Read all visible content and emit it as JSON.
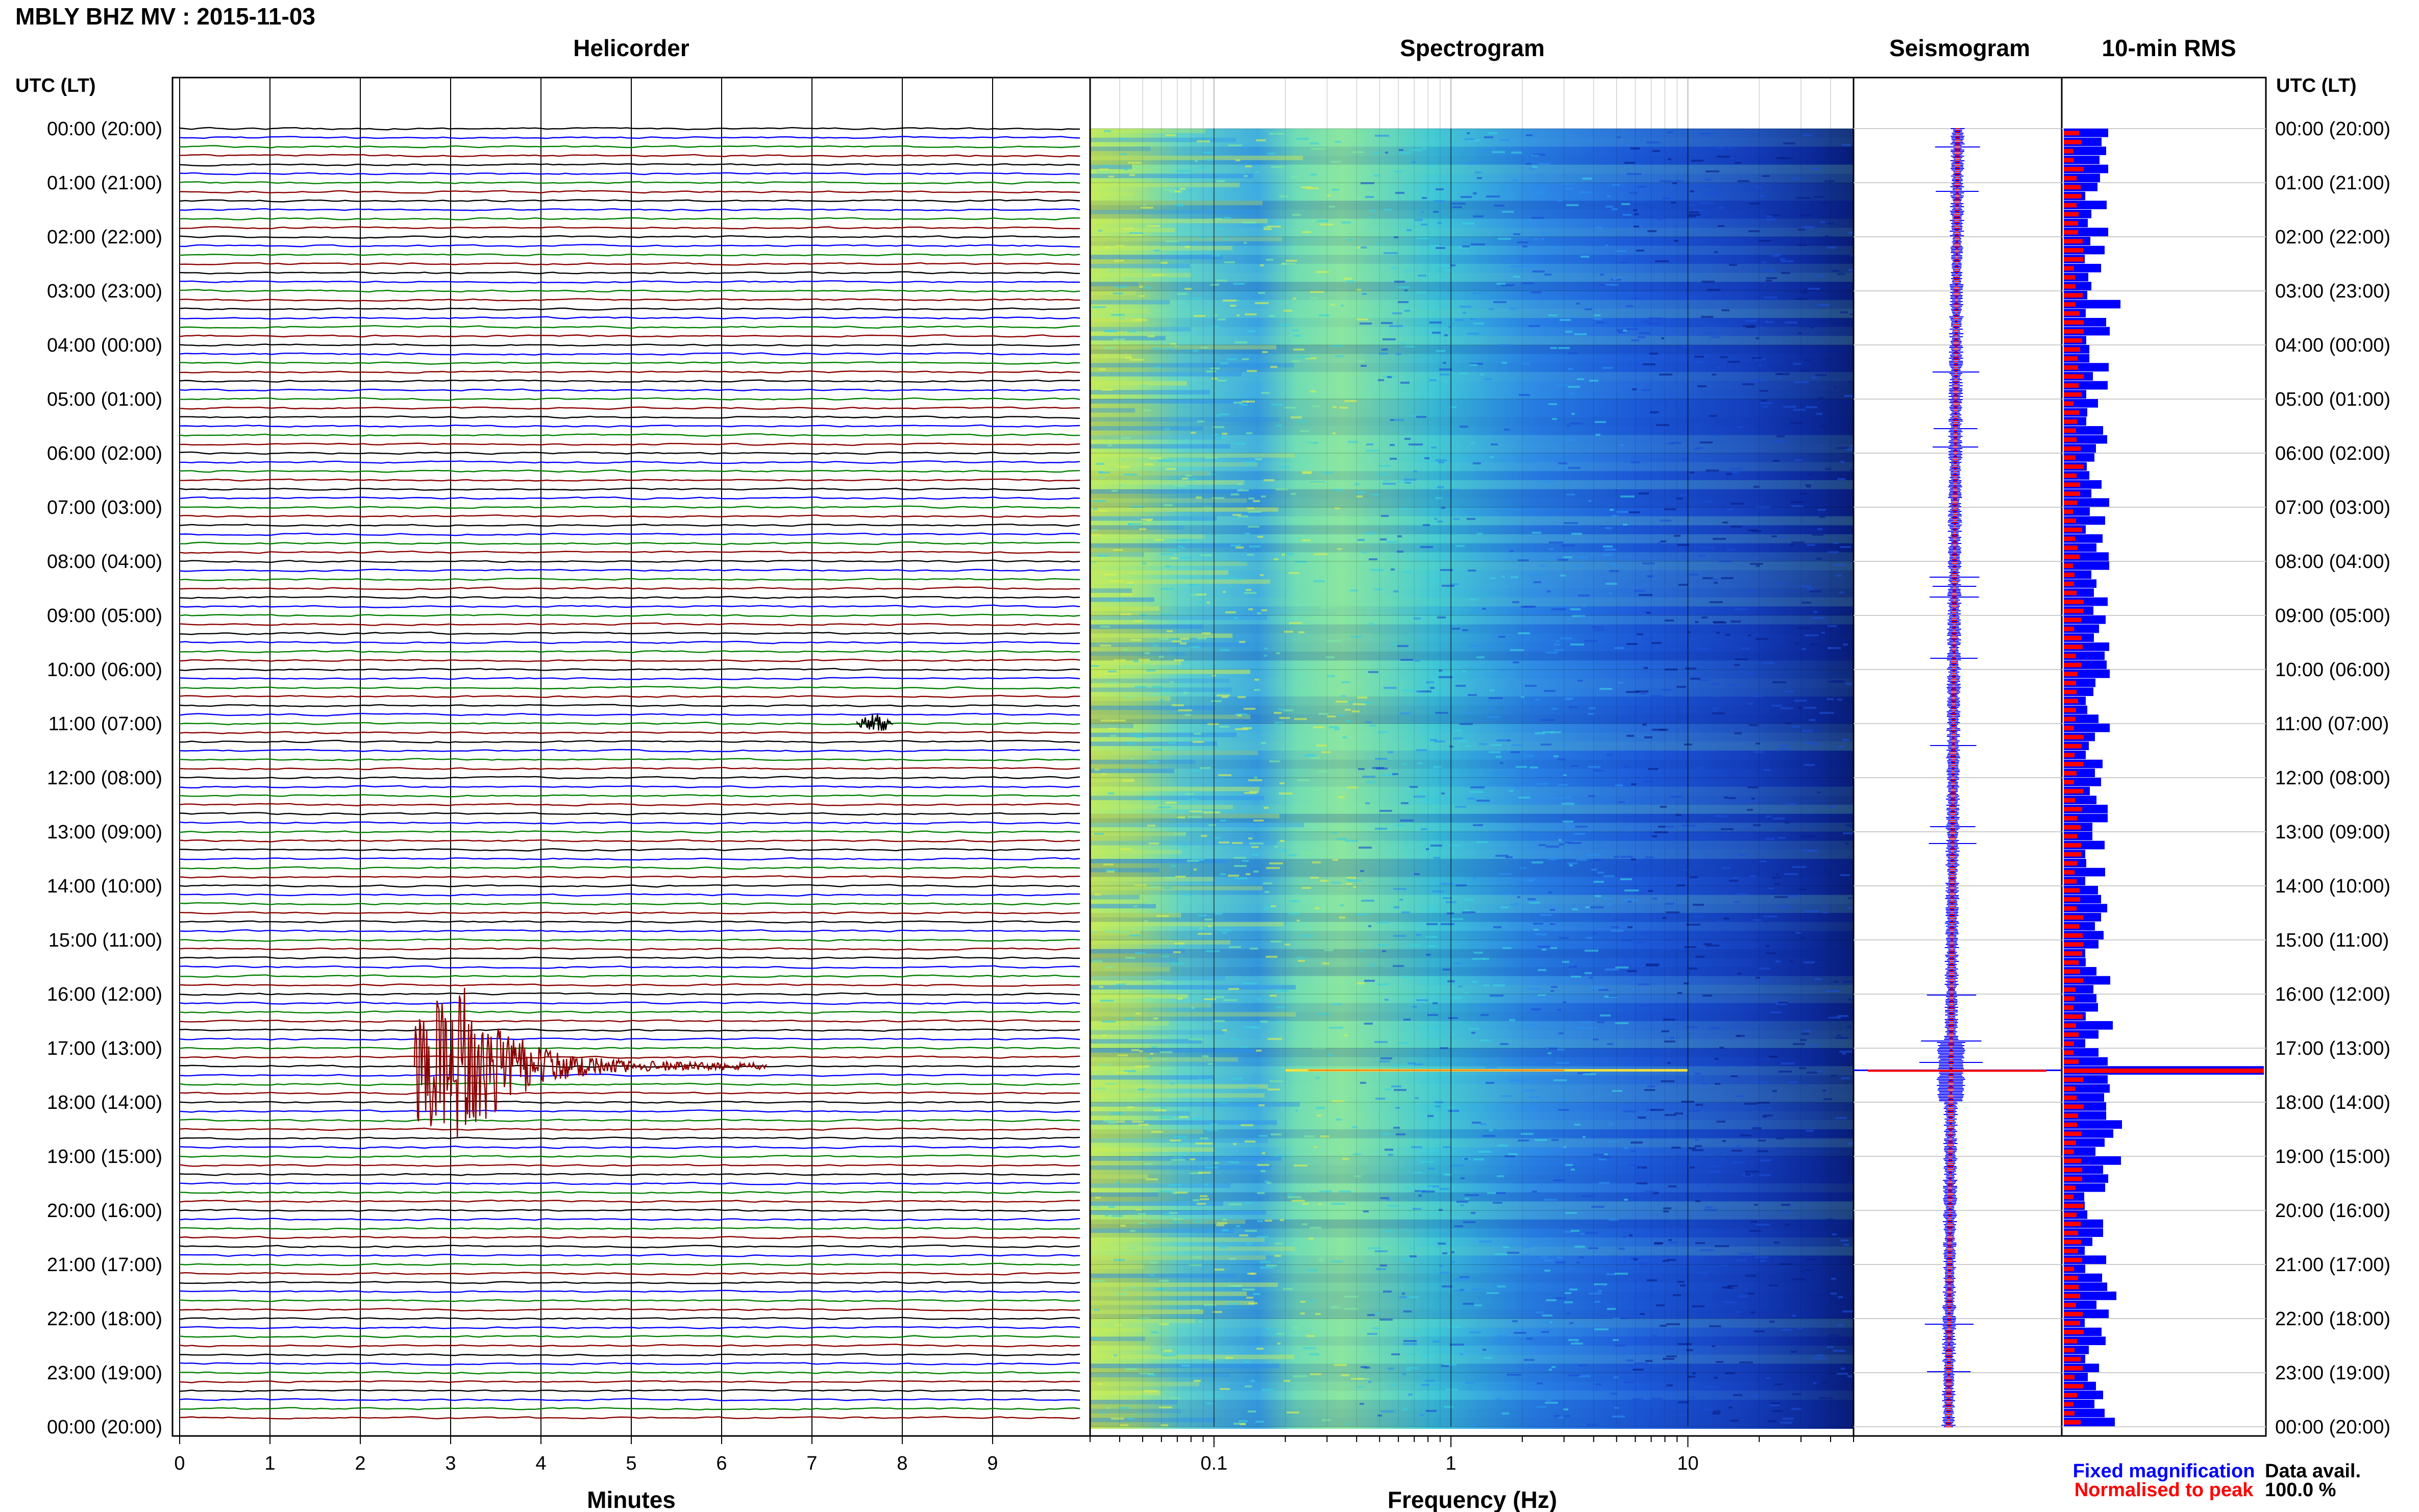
{
  "header": {
    "title": "MBLY BHZ MV : 2015-11-03",
    "utc_label_left": "UTC (LT)",
    "utc_label_right": "UTC (LT)"
  },
  "panels": {
    "helicorder": "Helicorder",
    "spectrogram": "Spectrogram",
    "seismogram": "Seismogram",
    "rms": "10-min RMS"
  },
  "time_labels": [
    "00:00 (20:00)",
    "01:00 (21:00)",
    "02:00 (22:00)",
    "03:00 (23:00)",
    "04:00 (00:00)",
    "05:00 (01:00)",
    "06:00 (02:00)",
    "07:00 (03:00)",
    "08:00 (04:00)",
    "09:00 (05:00)",
    "10:00 (06:00)",
    "11:00 (07:00)",
    "12:00 (08:00)",
    "13:00 (09:00)",
    "14:00 (10:00)",
    "15:00 (11:00)",
    "16:00 (12:00)",
    "17:00 (13:00)",
    "18:00 (14:00)",
    "19:00 (15:00)",
    "20:00 (16:00)",
    "21:00 (17:00)",
    "22:00 (18:00)",
    "23:00 (19:00)",
    "00:00 (20:00)"
  ],
  "axes": {
    "minutes_label": "Minutes",
    "minutes_ticks": [
      "0",
      "1",
      "2",
      "3",
      "4",
      "5",
      "6",
      "7",
      "8",
      "9"
    ],
    "frequency_label": "Frequency (Hz)",
    "frequency_ticks": [
      "0.1",
      "1",
      "10"
    ]
  },
  "legend": {
    "fixed": "Fixed magnification",
    "normalised": "Normalised to peak",
    "fixed_color": "#0000ff",
    "normalised_color": "#ff0000"
  },
  "data_availability": {
    "label": "Data avail.",
    "value": "100.0 %"
  },
  "chart_data": [
    {
      "type": "line",
      "panel": "helicorder",
      "xlabel": "Minutes",
      "xlim": [
        0,
        10
      ],
      "lines_per_hour": 6,
      "trace_colors": [
        "#000000",
        "#0000ff",
        "#008000",
        "#8b0000"
      ],
      "events": [
        {
          "utc": "17:20",
          "minute_start": 2.6,
          "minute_end": 6.5,
          "peak_minute": 3.1,
          "color": "#8b0000"
        },
        {
          "utc": "11:00",
          "minute_start": 7.5,
          "minute_end": 7.9,
          "peak_minute": 7.7,
          "color": "#000000"
        }
      ]
    },
    {
      "type": "heatmap",
      "panel": "spectrogram",
      "xlabel": "Frequency (Hz)",
      "xscale": "log",
      "xlim": [
        0.03,
        50
      ],
      "colormap": [
        "#0a1f8a",
        "#1a4fd6",
        "#2a8ff0",
        "#3ad0e0",
        "#7fe8a0",
        "#d8f050"
      ],
      "event_line": {
        "utc": "17:20",
        "fmin": 0.2,
        "fmax": 10
      }
    },
    {
      "type": "line",
      "panel": "seismogram",
      "series": [
        {
          "name": "Fixed magnification",
          "color": "#0000ff"
        },
        {
          "name": "Normalised to peak",
          "color": "#ff0000"
        }
      ],
      "peak_utc": "17:20"
    },
    {
      "type": "bar",
      "panel": "rms",
      "interval_minutes": 10,
      "series": [
        {
          "name": "Fixed magnification",
          "color": "#0000ff"
        },
        {
          "name": "Normalised to peak",
          "color": "#ff0000"
        }
      ],
      "peak_utc": "17:20"
    }
  ]
}
